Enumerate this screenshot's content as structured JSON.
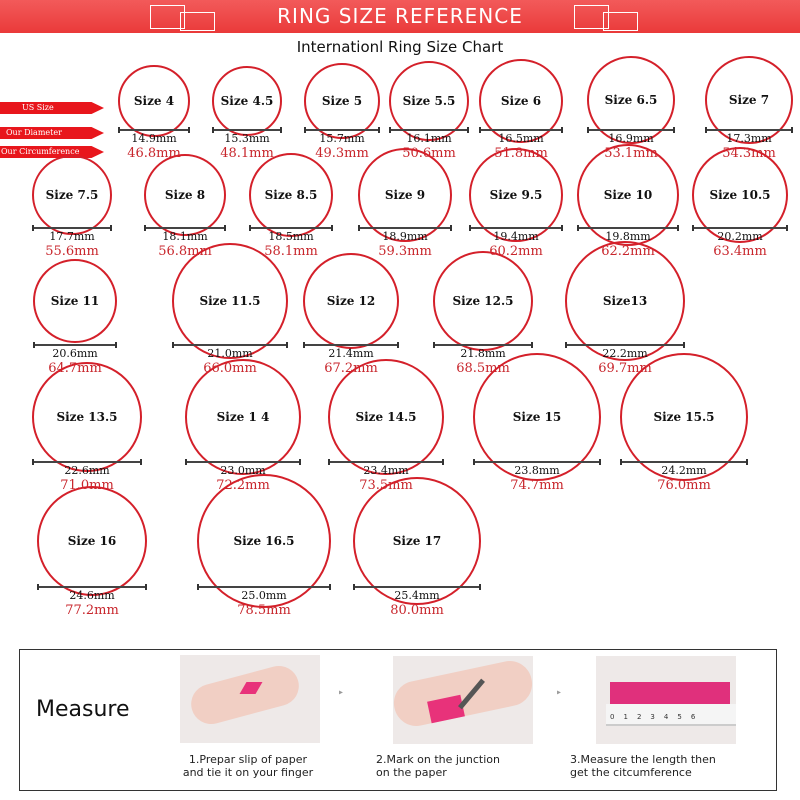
{
  "banner": {
    "title": "RING SIZE REFERENCE"
  },
  "subtitle": "Internationl Ring Size Chart",
  "legend": {
    "us_size": "US Size",
    "diameter": "Our Diameter",
    "circumference": "Our Circumference"
  },
  "colors": {
    "accent": "#e8161c",
    "ring": "#d4202a",
    "circumference_text": "#c8262c"
  },
  "rings": [
    {
      "label": "Size 4",
      "diameter": "14.9mm",
      "circumference": "46.8mm"
    },
    {
      "label": "Size 4.5",
      "diameter": "15.3mm",
      "circumference": "48.1mm"
    },
    {
      "label": "Size 5",
      "diameter": "15.7mm",
      "circumference": "49.3mm"
    },
    {
      "label": "Size 5.5",
      "diameter": "16.1mm",
      "circumference": "50.6mm"
    },
    {
      "label": "Size 6",
      "diameter": "16.5mm",
      "circumference": "51.8mm"
    },
    {
      "label": "Size 6.5",
      "diameter": "16.9mm",
      "circumference": "53.1mm"
    },
    {
      "label": "Size 7",
      "diameter": "17.3mm",
      "circumference": "54.3mm"
    },
    {
      "label": "Size 7.5",
      "diameter": "17.7mm",
      "circumference": "55.6mm"
    },
    {
      "label": "Size 8",
      "diameter": "18.1mm",
      "circumference": "56.8mm"
    },
    {
      "label": "Size 8.5",
      "diameter": "18.5mm",
      "circumference": "58.1mm"
    },
    {
      "label": "Size 9",
      "diameter": "18.9mm",
      "circumference": "59.3mm"
    },
    {
      "label": "Size 9.5",
      "diameter": "19.4mm",
      "circumference": "60.2mm"
    },
    {
      "label": "Size 10",
      "diameter": "19.8mm",
      "circumference": "62.2mm"
    },
    {
      "label": "Size 10.5",
      "diameter": "20.2mm",
      "circumference": "63.4mm"
    },
    {
      "label": "Size 11",
      "diameter": "20.6mm",
      "circumference": "64.7mm"
    },
    {
      "label": "Size 11.5",
      "diameter": "21.0mm",
      "circumference": "66.0mm"
    },
    {
      "label": "Size 12",
      "diameter": "21.4mm",
      "circumference": "67.2mm"
    },
    {
      "label": "Size 12.5",
      "diameter": "21.8mm",
      "circumference": "68.5mm"
    },
    {
      "label": "Size13",
      "diameter": "22.2mm",
      "circumference": "69.7mm"
    },
    {
      "label": "Size 13.5",
      "diameter": "22.6mm",
      "circumference": "71.0mm"
    },
    {
      "label": "Size 1 4",
      "diameter": "23.0mm",
      "circumference": "72.2mm"
    },
    {
      "label": "Size 14.5",
      "diameter": "23.4mm",
      "circumference": "73.5mm"
    },
    {
      "label": "Size 15",
      "diameter": "23.8mm",
      "circumference": "74.7mm"
    },
    {
      "label": "Size 15.5",
      "diameter": "24.2mm",
      "circumference": "76.0mm"
    },
    {
      "label": "Size 16",
      "diameter": "24.6mm",
      "circumference": "77.2mm"
    },
    {
      "label": "Size 16.5",
      "diameter": "25.0mm",
      "circumference": "78.5mm"
    },
    {
      "label": "Size 17",
      "diameter": "25.4mm",
      "circumference": "80.0mm"
    }
  ],
  "measure": {
    "title": "Measure",
    "steps": [
      {
        "line1": "1.Prepar slip of paper",
        "line2": "and tie it on your finger"
      },
      {
        "line1": "2.Mark on the junction",
        "line2": "on the paper"
      },
      {
        "line1": "3.Measure the length then",
        "line2": "get the citcumference"
      }
    ],
    "ruler_ticks": [
      "0",
      "1",
      "2",
      "3",
      "4",
      "5",
      "6"
    ]
  }
}
